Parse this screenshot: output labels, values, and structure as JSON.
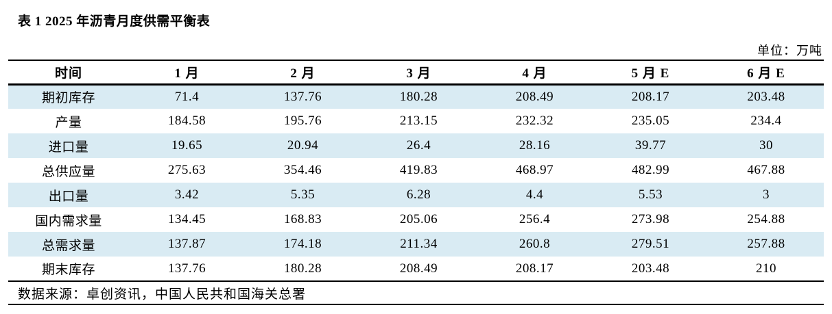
{
  "page": {
    "title": "表 1 2025 年沥青月度供需平衡表",
    "unit_label": "单位：万吨"
  },
  "table": {
    "columns": [
      "时间",
      "1 月",
      "2 月",
      "3 月",
      "4 月",
      "5 月 E",
      "6 月 E"
    ],
    "rows": [
      {
        "label": "期初库存",
        "values": [
          "71.4",
          "137.76",
          "180.28",
          "208.49",
          "208.17",
          "203.48"
        ]
      },
      {
        "label": "产量",
        "values": [
          "184.58",
          "195.76",
          "213.15",
          "232.32",
          "235.05",
          "234.4"
        ]
      },
      {
        "label": "进口量",
        "values": [
          "19.65",
          "20.94",
          "26.4",
          "28.16",
          "39.77",
          "30"
        ]
      },
      {
        "label": "总供应量",
        "values": [
          "275.63",
          "354.46",
          "419.83",
          "468.97",
          "482.99",
          "467.88"
        ]
      },
      {
        "label": "出口量",
        "values": [
          "3.42",
          "5.35",
          "6.28",
          "4.4",
          "5.53",
          "3"
        ]
      },
      {
        "label": "国内需求量",
        "values": [
          "134.45",
          "168.83",
          "205.06",
          "256.4",
          "273.98",
          "254.88"
        ]
      },
      {
        "label": "总需求量",
        "values": [
          "137.87",
          "174.18",
          "211.34",
          "260.8",
          "279.51",
          "257.88"
        ]
      },
      {
        "label": "期末库存",
        "values": [
          "137.76",
          "180.28",
          "208.49",
          "208.17",
          "203.48",
          "210"
        ]
      }
    ],
    "source": "数据来源：卓创资讯，中国人民共和国海关总署"
  },
  "colors": {
    "stripe_row_background": "#d9ebf3",
    "border": "#000000",
    "text": "#000000",
    "page_background": "#ffffff"
  }
}
